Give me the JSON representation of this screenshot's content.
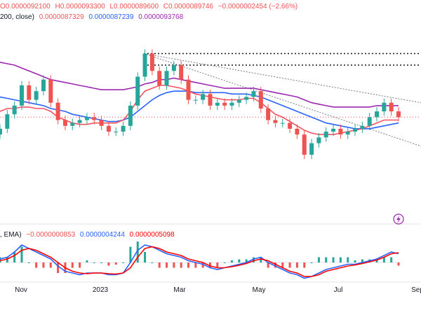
{
  "legend": {
    "ohlc": {
      "open": "O0.0000092100",
      "high": "H0.0000093300",
      "low": "L0.0000089600",
      "close": "C0.0000089746",
      "change": "−0.0000002454 (−2.66%)"
    },
    "ma": {
      "prefix": "200, close)",
      "v1": "0.0000087329",
      "v2": "0.0000087239",
      "v3": "0.0000093768"
    },
    "macd": {
      "prefix": ", EMA)",
      "hist": "−0.0000000853",
      "macd": "0.0000004244",
      "signal": "0.0000005098"
    }
  },
  "colors": {
    "up": "#26a69a",
    "down": "#ef5350",
    "text_down": "#ef5350",
    "ma_red": "#f7525f",
    "ma_blue": "#2962ff",
    "ma_purple": "#9c27b0",
    "macd_blue": "#2962ff",
    "macd_red": "#ff0000",
    "hist_up": "#26a69a",
    "hist_down": "#ef5350"
  },
  "watermark_icon": "lightning-icon",
  "chart_data": {
    "type": "candlestick",
    "x_tick_labels": [
      "Nov",
      "2023",
      "Mar",
      "May",
      "Jul",
      "Sep"
    ],
    "grid": false,
    "price": [
      8.6,
      9.1,
      9.4,
      10.1,
      9.6,
      9.9,
      10.3,
      9.5,
      8.9,
      8.7,
      8.8,
      8.9,
      9.0,
      8.9,
      8.7,
      8.5,
      8.5,
      8.7,
      9.4,
      10.4,
      11.2,
      10.6,
      10.1,
      10.6,
      10.8,
      10.3,
      9.6,
      9.6,
      9.8,
      9.4,
      9.5,
      9.4,
      9.5,
      9.6,
      9.7,
      9.9,
      9.3,
      8.9,
      8.8,
      8.8,
      8.6,
      8.4,
      7.7,
      8.1,
      8.3,
      8.5,
      8.6,
      8.4,
      8.5,
      8.6,
      8.7,
      9.0,
      9.2,
      9.5,
      9.2,
      9.0
    ],
    "ma_red": [
      9.2,
      9.3,
      9.3,
      9.35,
      9.35,
      9.3,
      9.3,
      9.2,
      9.0,
      8.9,
      8.8,
      8.75,
      8.75,
      8.8,
      8.8,
      8.8,
      8.8,
      8.9,
      9.2,
      9.6,
      9.9,
      10.0,
      10.1,
      10.1,
      10.05,
      10.0,
      9.9,
      9.8,
      9.75,
      9.7,
      9.65,
      9.6,
      9.6,
      9.6,
      9.65,
      9.65,
      9.5,
      9.3,
      9.1,
      9.0,
      8.85,
      8.7,
      8.55,
      8.45,
      8.4,
      8.4,
      8.4,
      8.45,
      8.5,
      8.55,
      8.6,
      8.7,
      8.8,
      8.9,
      8.9,
      8.9
    ],
    "ma_blue": [
      9.7,
      9.65,
      9.6,
      9.55,
      9.5,
      9.45,
      9.4,
      9.3,
      9.25,
      9.2,
      9.1,
      9.05,
      9.0,
      8.95,
      8.9,
      8.85,
      8.85,
      8.9,
      9.0,
      9.2,
      9.4,
      9.6,
      9.75,
      9.85,
      9.9,
      9.9,
      9.9,
      9.85,
      9.85,
      9.85,
      9.85,
      9.85,
      9.8,
      9.8,
      9.8,
      9.75,
      9.7,
      9.6,
      9.5,
      9.4,
      9.3,
      9.2,
      9.1,
      9.0,
      8.9,
      8.8,
      8.75,
      8.7,
      8.65,
      8.6,
      8.6,
      8.6,
      8.65,
      8.7,
      8.75,
      8.8
    ],
    "ma_purple": [
      10.9,
      10.85,
      10.8,
      10.7,
      10.6,
      10.5,
      10.4,
      10.3,
      10.25,
      10.2,
      10.15,
      10.1,
      10.05,
      10.0,
      9.95,
      9.95,
      9.95,
      9.95,
      10.0,
      10.05,
      10.15,
      10.2,
      10.3,
      10.3,
      10.35,
      10.3,
      10.25,
      10.2,
      10.15,
      10.1,
      10.05,
      10.0,
      10.0,
      10.0,
      10.0,
      10.0,
      9.95,
      9.9,
      9.85,
      9.8,
      9.75,
      9.7,
      9.6,
      9.5,
      9.45,
      9.4,
      9.35,
      9.35,
      9.35,
      9.35,
      9.35,
      9.35,
      9.4,
      9.4,
      9.4,
      9.4
    ],
    "macd": [
      0.1,
      0.15,
      0.3,
      0.5,
      0.4,
      0.3,
      0.2,
      0.1,
      -0.1,
      -0.25,
      -0.3,
      -0.35,
      -0.3,
      -0.3,
      -0.3,
      -0.35,
      -0.35,
      -0.3,
      0.0,
      0.35,
      0.5,
      0.45,
      0.35,
      0.25,
      0.2,
      0.15,
      0.05,
      0.0,
      -0.05,
      -0.15,
      -0.2,
      -0.15,
      -0.1,
      -0.05,
      0.0,
      0.1,
      0.15,
      0.0,
      -0.1,
      -0.2,
      -0.3,
      -0.35,
      -0.45,
      -0.4,
      -0.3,
      -0.2,
      -0.15,
      -0.1,
      -0.05,
      -0.05,
      0.0,
      0.05,
      0.1,
      0.2,
      0.3,
      0.25
    ],
    "macd_signal": [
      0.05,
      0.1,
      0.2,
      0.35,
      0.4,
      0.35,
      0.25,
      0.15,
      0.0,
      -0.15,
      -0.25,
      -0.3,
      -0.32,
      -0.3,
      -0.3,
      -0.32,
      -0.33,
      -0.3,
      -0.15,
      0.15,
      0.4,
      0.45,
      0.4,
      0.3,
      0.25,
      0.2,
      0.1,
      0.05,
      0.0,
      -0.1,
      -0.15,
      -0.15,
      -0.12,
      -0.08,
      -0.03,
      0.05,
      0.1,
      0.05,
      -0.05,
      -0.15,
      -0.25,
      -0.3,
      -0.4,
      -0.4,
      -0.35,
      -0.25,
      -0.2,
      -0.15,
      -0.1,
      -0.07,
      -0.03,
      0.02,
      0.07,
      0.15,
      0.25,
      0.28
    ]
  }
}
